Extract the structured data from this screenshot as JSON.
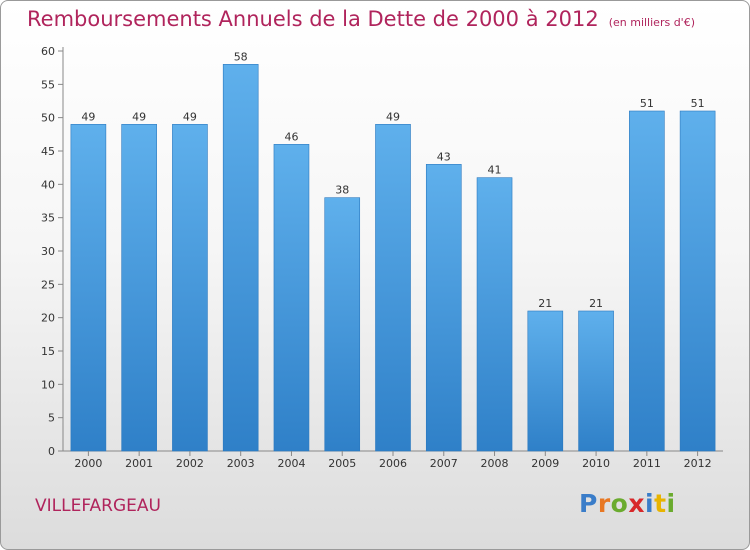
{
  "title": "Remboursements Annuels de la Dette de 2000 à 2012",
  "unit_note": "(en milliers d'€)",
  "commune": "VILLEFARGEAU",
  "logo": {
    "letters": [
      "P",
      "r",
      "o",
      "x",
      "i",
      "t",
      "i"
    ],
    "colors": [
      "#3a7dc9",
      "#e87722",
      "#6aab2e",
      "#d8282a",
      "#3a7dc9",
      "#e8b400",
      "#6aab2e"
    ]
  },
  "colors": {
    "bar": "#3d8fd6",
    "bar_light": "#5fb0ec",
    "title": "#b0245c"
  },
  "chart_data": {
    "type": "bar",
    "categories": [
      "2000",
      "2001",
      "2002",
      "2003",
      "2004",
      "2005",
      "2006",
      "2007",
      "2008",
      "2009",
      "2010",
      "2011",
      "2012"
    ],
    "values": [
      49,
      49,
      49,
      58,
      46,
      38,
      49,
      43,
      41,
      21,
      21,
      51,
      51
    ],
    "ylim": [
      0,
      60
    ],
    "yticks": [
      0,
      5,
      10,
      15,
      20,
      25,
      30,
      35,
      40,
      45,
      50,
      55,
      60
    ],
    "grid": false,
    "xlabel": "",
    "ylabel": ""
  }
}
